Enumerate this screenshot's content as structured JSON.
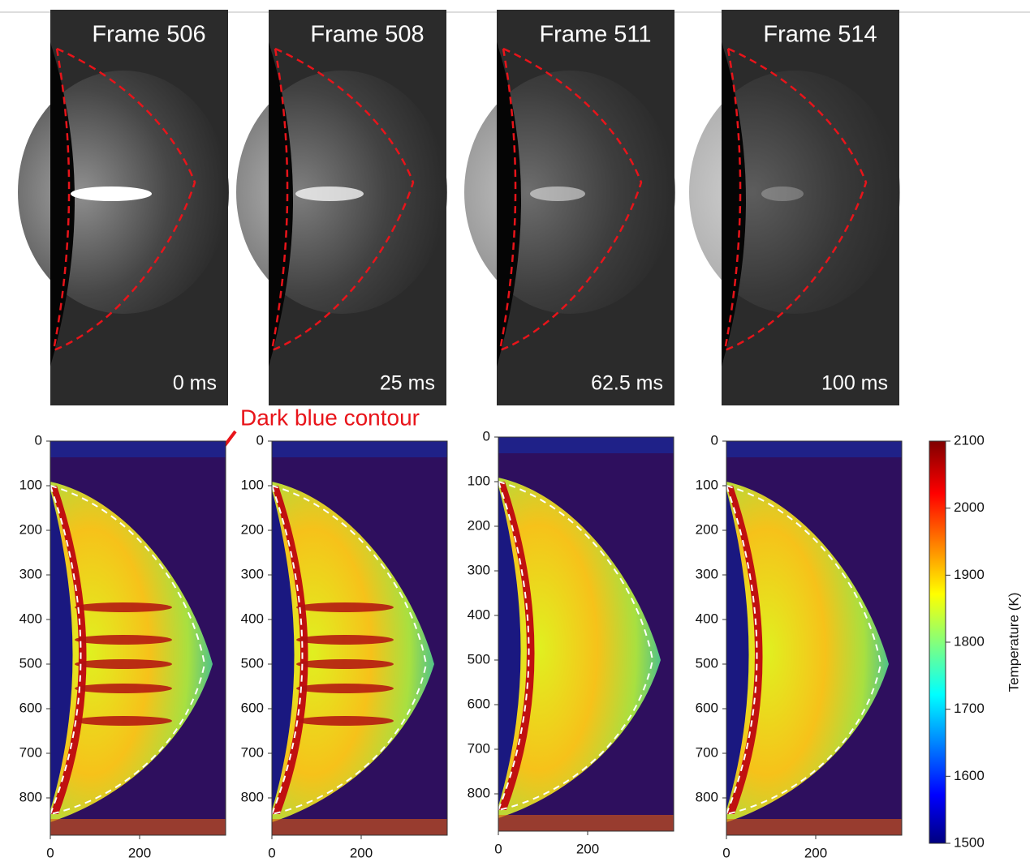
{
  "annotation": "Dark blue contour",
  "frames": [
    {
      "label": "Frame 506",
      "time": "0 ms"
    },
    {
      "label": "Frame 508",
      "time": "25 ms"
    },
    {
      "label": "Frame 511",
      "time": "62.5 ms"
    },
    {
      "label": "Frame 514",
      "time": "100 ms"
    }
  ],
  "heatmap_axes": {
    "yticks": [
      0,
      100,
      200,
      300,
      400,
      500,
      600,
      700,
      800
    ],
    "xticks": [
      0,
      200
    ]
  },
  "colorbar": {
    "label": "Temperature (K)",
    "ticks": [
      1500,
      1600,
      1700,
      1800,
      1900,
      2000,
      2100
    ]
  }
}
